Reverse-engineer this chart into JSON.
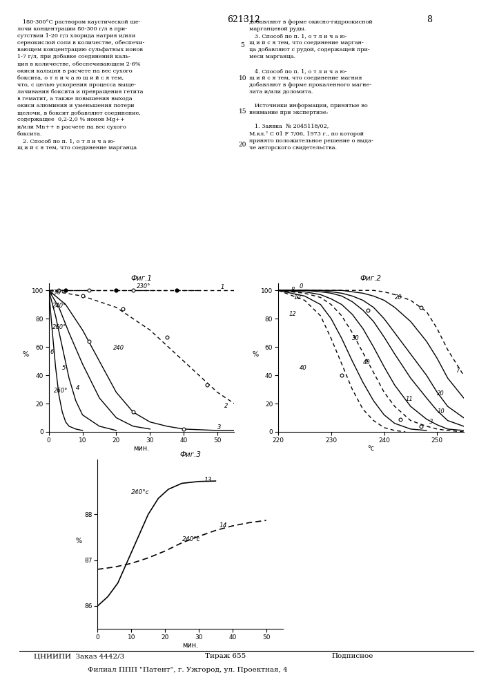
{
  "fig1": {
    "title": "Фиг.1",
    "xlabel": "мин.",
    "ylabel": "%",
    "xlim": [
      0,
      55
    ],
    "ylim": [
      0,
      105
    ],
    "xticks": [
      0,
      10,
      20,
      30,
      40,
      50
    ],
    "yticks": [
      0,
      20,
      40,
      60,
      80,
      100
    ]
  },
  "fig2": {
    "title": "Фиг.2",
    "xlabel": "°с",
    "ylabel": "%",
    "xlim": [
      220,
      255
    ],
    "ylim": [
      0,
      105
    ],
    "xticks": [
      220,
      230,
      240,
      250
    ],
    "yticks": [
      0,
      20,
      40,
      60,
      80,
      100
    ]
  },
  "fig3": {
    "title": "Фиг.3",
    "xlabel": "мин.",
    "ylabel": "%",
    "xlim": [
      0,
      55
    ],
    "ylim": [
      85.5,
      89.2
    ],
    "xticks": [
      0,
      10,
      20,
      30,
      40,
      50
    ],
    "yticks": [
      86,
      87,
      88
    ]
  },
  "background": "#ffffff"
}
